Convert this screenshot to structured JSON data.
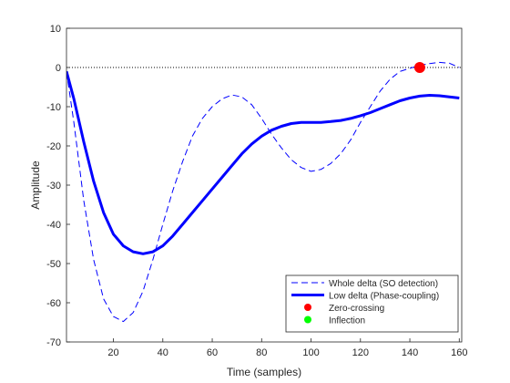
{
  "chart_data": {
    "type": "line",
    "xlabel": "Time (samples)",
    "ylabel": "Amplitude",
    "xlim": [
      1,
      161
    ],
    "ylim": [
      -70,
      10
    ],
    "xticks": [
      20,
      40,
      60,
      80,
      100,
      120,
      140,
      160
    ],
    "yticks": [
      10,
      0,
      -10,
      -20,
      -30,
      -40,
      -50,
      -60,
      -70
    ],
    "grid": false,
    "legend_position": "bottom-right",
    "reference_line": {
      "y": 0,
      "style": "dotted",
      "color": "#000000"
    },
    "series": [
      {
        "name": "Whole delta (SO detection)",
        "style": "dashed",
        "color": "#0000ff",
        "width": 1,
        "x": [
          1,
          4,
          8,
          12,
          16,
          20,
          24,
          28,
          32,
          36,
          40,
          44,
          48,
          52,
          56,
          60,
          64,
          68,
          72,
          76,
          80,
          84,
          88,
          92,
          96,
          100,
          104,
          108,
          112,
          116,
          120,
          124,
          128,
          132,
          136,
          140,
          144,
          148,
          152,
          156,
          160
        ],
        "y": [
          -1,
          -14,
          -34,
          -49,
          -59,
          -63.5,
          -64.8,
          -62.5,
          -57,
          -49,
          -40,
          -31.5,
          -24,
          -17.5,
          -13,
          -10,
          -8,
          -7,
          -7.5,
          -9.5,
          -13,
          -17,
          -20.5,
          -23.5,
          -25.5,
          -26.5,
          -26,
          -24.5,
          -22,
          -18.5,
          -14,
          -10,
          -6,
          -3,
          -1,
          -0.2,
          0.5,
          1,
          1.3,
          1.1,
          0
        ]
      },
      {
        "name": "Low delta (Phase-coupling)",
        "style": "solid",
        "color": "#0000ff",
        "width": 3,
        "x": [
          1,
          4,
          8,
          12,
          16,
          20,
          24,
          28,
          32,
          36,
          40,
          44,
          48,
          52,
          56,
          60,
          64,
          68,
          72,
          76,
          80,
          84,
          88,
          92,
          96,
          100,
          104,
          108,
          112,
          116,
          120,
          124,
          128,
          132,
          136,
          140,
          144,
          148,
          152,
          156,
          160
        ],
        "y": [
          -1,
          -8,
          -19,
          -29,
          -37,
          -42.5,
          -45.5,
          -47,
          -47.5,
          -47,
          -45.5,
          -43,
          -40,
          -37,
          -34,
          -31,
          -28,
          -25,
          -22,
          -19.5,
          -17.5,
          -16,
          -15,
          -14.3,
          -14,
          -14,
          -14,
          -13.8,
          -13.5,
          -13,
          -12.3,
          -11.5,
          -10.5,
          -9.5,
          -8.5,
          -7.8,
          -7.3,
          -7.1,
          -7.2,
          -7.5,
          -7.8
        ]
      },
      {
        "name": "Zero-crossing",
        "style": "marker",
        "color": "#ff0000",
        "x": [
          144
        ],
        "y": [
          0
        ]
      },
      {
        "name": "Inflection",
        "style": "marker",
        "color": "#00ff00",
        "x": [],
        "y": []
      }
    ]
  }
}
